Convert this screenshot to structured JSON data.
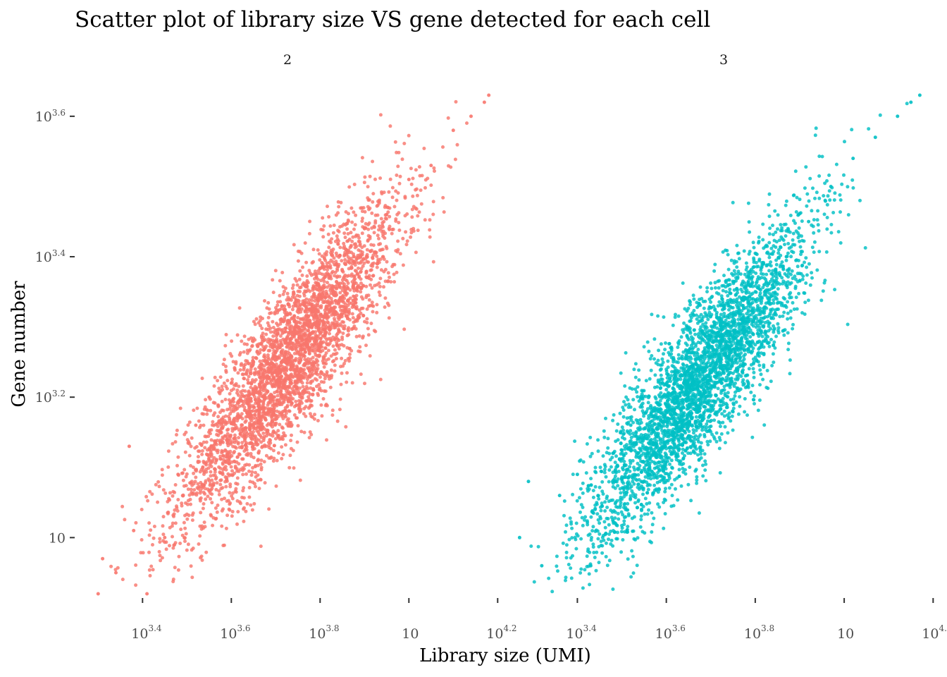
{
  "chart_data": {
    "type": "scatter",
    "title": "Scatter plot of library size VS gene detected for each cell",
    "xlabel": "Library size (UMI)",
    "ylabel": "Gene number",
    "x_scale": "log10",
    "y_scale": "log10",
    "xlim_log10": [
      3.29,
      4.19
    ],
    "ylim_log10": [
      2.92,
      3.63
    ],
    "x_ticks": [
      {
        "base": "10",
        "exp": "3.4",
        "log10": 3.4
      },
      {
        "base": "10",
        "exp": "3.6",
        "log10": 3.6
      },
      {
        "base": "10",
        "exp": "3.8",
        "log10": 3.8
      },
      {
        "base": "10",
        "exp": "",
        "log10": 4.0
      },
      {
        "base": "10",
        "exp": "4.2",
        "log10": 4.2
      }
    ],
    "y_ticks": [
      {
        "base": "10",
        "exp": "",
        "log10": 3.0
      },
      {
        "base": "10",
        "exp": "3.2",
        "log10": 3.2
      },
      {
        "base": "10",
        "exp": "3.4",
        "log10": 3.4
      },
      {
        "base": "10",
        "exp": "3.6",
        "log10": 3.6
      }
    ],
    "grid": false,
    "legend": "none",
    "panels": [
      {
        "label": "2",
        "color": "#F8766D",
        "approx_points": 3500,
        "x_center_log10": 3.73,
        "y_center_log10": 3.25,
        "representative_points_log10": [
          [
            3.3,
            2.92
          ],
          [
            3.31,
            2.97
          ],
          [
            3.34,
            2.95
          ],
          [
            3.37,
            3.13
          ],
          [
            3.38,
            3.01
          ],
          [
            3.41,
            2.92
          ],
          [
            3.45,
            3.0
          ],
          [
            3.48,
            3.09
          ],
          [
            3.52,
            3.16
          ],
          [
            3.55,
            3.2
          ],
          [
            3.6,
            3.22
          ],
          [
            3.65,
            3.25
          ],
          [
            3.7,
            3.28
          ],
          [
            3.75,
            3.3
          ],
          [
            3.8,
            3.34
          ],
          [
            3.85,
            3.38
          ],
          [
            3.9,
            3.44
          ],
          [
            3.95,
            3.46
          ],
          [
            4.0,
            3.51
          ],
          [
            4.05,
            3.53
          ],
          [
            4.1,
            3.58
          ],
          [
            4.14,
            3.6
          ],
          [
            4.17,
            3.62
          ],
          [
            4.18,
            3.63
          ]
        ]
      },
      {
        "label": "3",
        "color": "#00BFC4",
        "approx_points": 3500,
        "x_center_log10": 3.67,
        "y_center_log10": 3.22,
        "representative_points_log10": [
          [
            3.27,
            3.0
          ],
          [
            3.29,
            3.08
          ],
          [
            3.32,
            2.96
          ],
          [
            3.36,
            3.06
          ],
          [
            3.4,
            3.09
          ],
          [
            3.43,
            2.96
          ],
          [
            3.48,
            3.12
          ],
          [
            3.52,
            3.16
          ],
          [
            3.57,
            3.18
          ],
          [
            3.62,
            3.2
          ],
          [
            3.67,
            3.24
          ],
          [
            3.72,
            3.28
          ],
          [
            3.77,
            3.31
          ],
          [
            3.82,
            3.36
          ],
          [
            3.87,
            3.4
          ],
          [
            3.92,
            3.45
          ],
          [
            3.97,
            3.5
          ],
          [
            4.02,
            3.54
          ],
          [
            4.07,
            3.57
          ],
          [
            4.12,
            3.6
          ],
          [
            4.15,
            3.62
          ],
          [
            4.17,
            3.63
          ]
        ]
      }
    ]
  }
}
